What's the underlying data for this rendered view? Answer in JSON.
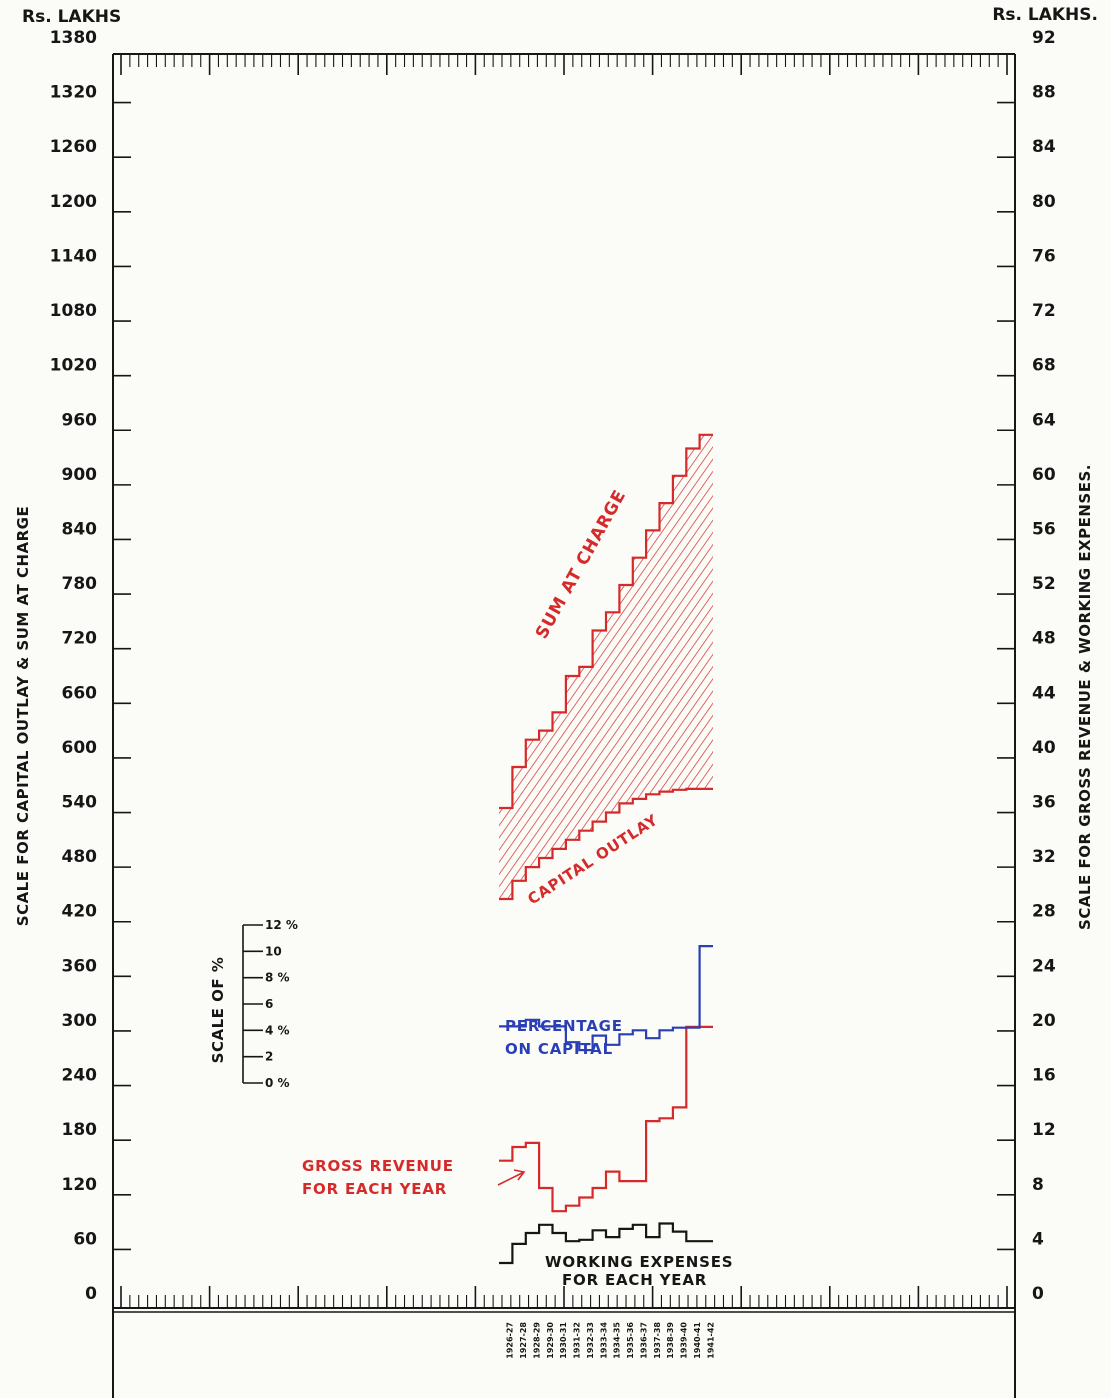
{
  "chart_data": {
    "type": "line",
    "left_unit_label": "Rs. LAKHS",
    "right_unit_label": "Rs. LAKHS.",
    "left_axis_title": "SCALE FOR CAPITAL OUTLAY & SUM AT CHARGE",
    "right_axis_title": "SCALE FOR GROSS REVENUE & WORKING EXPENSES.",
    "left_ticks": [
      0,
      60,
      120,
      180,
      240,
      300,
      360,
      420,
      480,
      540,
      600,
      660,
      720,
      780,
      840,
      900,
      960,
      1020,
      1080,
      1140,
      1200,
      1260,
      1320,
      1380
    ],
    "left_tick_text": [
      "0",
      "60",
      "120",
      "180",
      "240",
      "300",
      "360",
      "420",
      "480",
      "540",
      "600",
      "660",
      "720",
      "780",
      "840",
      "900",
      "960",
      "1020",
      "1080",
      "1140",
      "1200",
      "1260",
      "1320",
      "1380"
    ],
    "right_ticks": [
      0,
      4,
      8,
      12,
      16,
      20,
      24,
      28,
      32,
      36,
      40,
      44,
      48,
      52,
      56,
      60,
      64,
      68,
      72,
      76,
      80,
      84,
      88,
      92
    ],
    "right_tick_text": [
      "0",
      "4",
      "8",
      "12",
      "16",
      "20",
      "24",
      "28",
      "32",
      "36",
      "40",
      "44",
      "48",
      "52",
      "56",
      "60",
      "64",
      "68",
      "72",
      "76",
      "80",
      "84",
      "88",
      "92"
    ],
    "ylim_left": [
      0,
      1380
    ],
    "ylim_right": [
      0,
      92
    ],
    "years": [
      "1926-27",
      "1927-28",
      "1928-29",
      "1929-30",
      "1930-31",
      "1931-32",
      "1932-33",
      "1933-34",
      "1934-35",
      "1935-36",
      "1936-37",
      "1937-38",
      "1938-39",
      "1939-40",
      "1940-41",
      "1941-42"
    ],
    "series": [
      {
        "name": "SUM AT CHARGE",
        "axis": "left",
        "color": "#d42a2a",
        "values": [
          545,
          590,
          620,
          630,
          650,
          690,
          700,
          740,
          760,
          790,
          820,
          850,
          880,
          910,
          940,
          955
        ]
      },
      {
        "name": "CAPITAL OUTLAY",
        "axis": "left",
        "color": "#d42a2a",
        "values": [
          445,
          465,
          480,
          490,
          500,
          510,
          520,
          530,
          540,
          550,
          555,
          560,
          563,
          565,
          566,
          566
        ]
      },
      {
        "name": "GROSS REVENUE FOR EACH YEAR",
        "axis": "right",
        "color": "#d42a2a",
        "values": [
          10.5,
          11.5,
          11.8,
          8.5,
          6.8,
          7.2,
          7.8,
          8.5,
          9.7,
          9.0,
          9.0,
          13.4,
          13.6,
          14.4,
          20.3,
          20.3
        ]
      },
      {
        "name": "WORKING EXPENSES FOR EACH YEAR",
        "axis": "right",
        "color": "#161616",
        "values": [
          3.0,
          4.4,
          5.2,
          5.8,
          5.2,
          4.6,
          4.7,
          5.4,
          4.9,
          5.5,
          5.8,
          4.9,
          5.9,
          5.3,
          4.6,
          4.6
        ]
      },
      {
        "name": "PERCENTAGE ON CAPITAL",
        "axis": "percent",
        "color": "#2a3fb6",
        "values": [
          4.3,
          4.3,
          4.8,
          4.3,
          4.3,
          3.1,
          2.5,
          3.6,
          2.9,
          3.7,
          4.0,
          3.4,
          4.0,
          4.2,
          4.2,
          10.4
        ]
      }
    ],
    "percent_scale": {
      "title": "SCALE OF %",
      "ticks": [
        0,
        2,
        4,
        6,
        8,
        10,
        12
      ],
      "tick_text": [
        "0 %",
        "2",
        "4 %",
        "6",
        "8 %",
        "10",
        "12 %"
      ]
    },
    "annotations": {
      "sum_at_charge": "SUM AT CHARGE",
      "capital_outlay": "CAPITAL OUTLAY",
      "percentage_line1": "PERCENTAGE",
      "percentage_line2": "ON CAPITAL",
      "gross_line1": "GROSS REVENUE",
      "gross_line2": "FOR EACH YEAR",
      "working_line1": "WORKING EXPENSES",
      "working_line2": "FOR EACH YEAR"
    },
    "grid": false
  }
}
